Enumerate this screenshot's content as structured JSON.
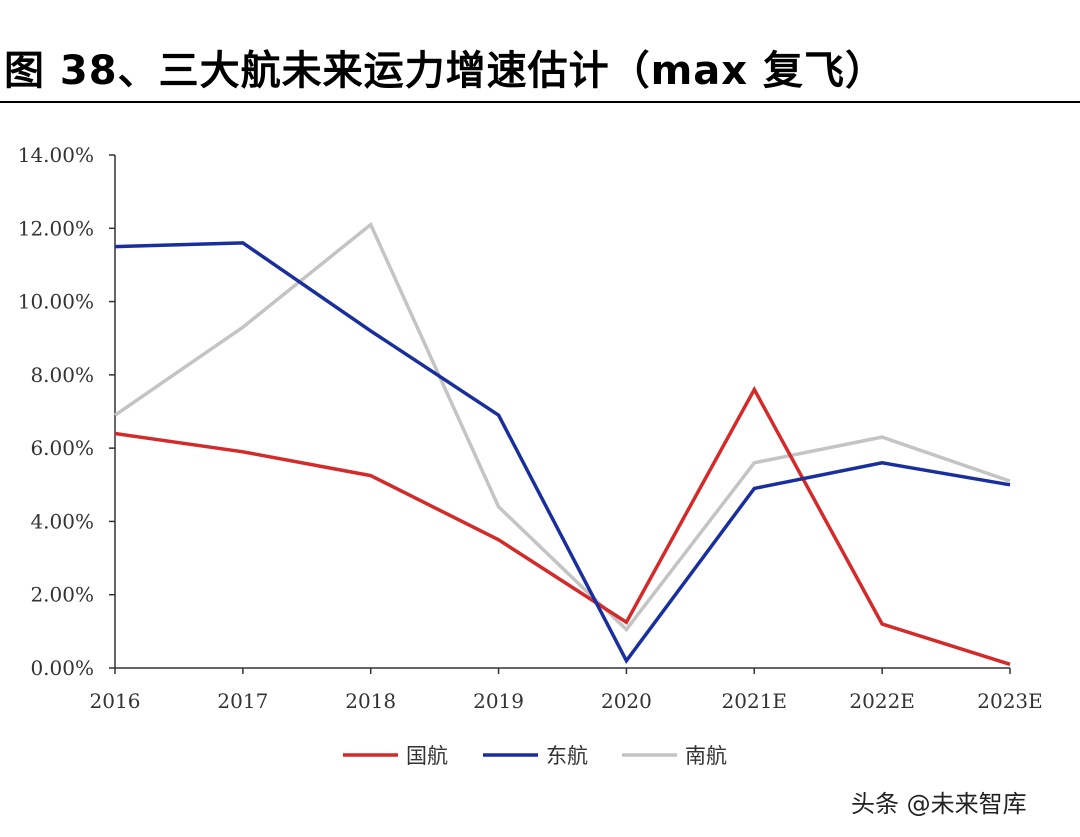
{
  "title": "图 38、三大航未来运力增速估计（max 复飞）",
  "watermark": "头条 @未来智库",
  "chart_data": {
    "type": "line",
    "title": "图 38、三大航未来运力增速估计（max 复飞）",
    "xlabel": "",
    "ylabel": "",
    "categories": [
      "2016",
      "2017",
      "2018",
      "2019",
      "2020",
      "2021E",
      "2022E",
      "2023E"
    ],
    "ylim": [
      0,
      14
    ],
    "yticks": [
      "0.00%",
      "2.00%",
      "4.00%",
      "6.00%",
      "8.00%",
      "10.00%",
      "12.00%",
      "14.00%"
    ],
    "grid": false,
    "legend": "bottom",
    "series": [
      {
        "name": "国航",
        "color": "#d42a2a",
        "values": [
          6.4,
          5.9,
          5.25,
          3.5,
          1.25,
          7.6,
          1.2,
          0.1
        ]
      },
      {
        "name": "东航",
        "color": "#1a2f9e",
        "values": [
          11.5,
          11.6,
          9.2,
          6.9,
          0.2,
          4.9,
          5.6,
          5.0
        ]
      },
      {
        "name": "南航",
        "color": "#c4c4c4",
        "values": [
          6.9,
          9.3,
          12.1,
          4.4,
          1.05,
          5.6,
          6.3,
          5.1
        ]
      }
    ]
  }
}
